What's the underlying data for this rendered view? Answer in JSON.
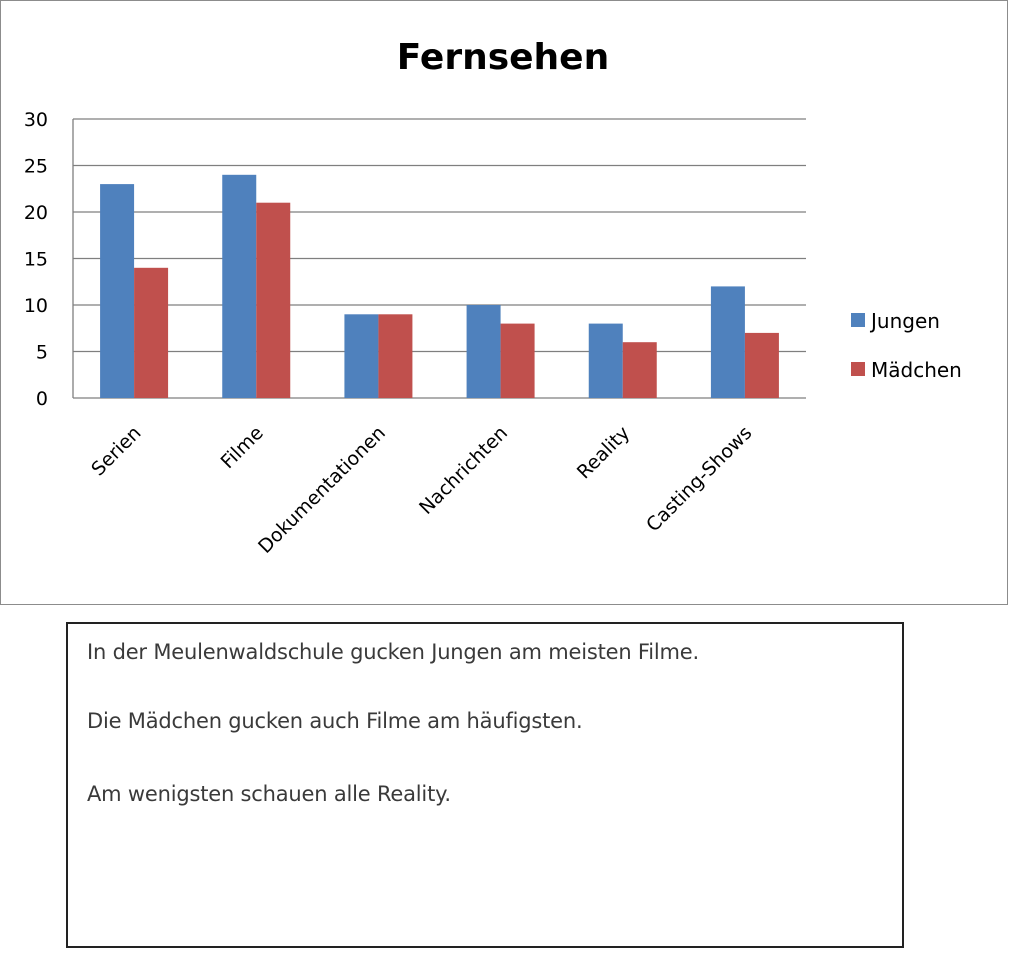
{
  "chart_data": {
    "type": "bar",
    "title": "Fernsehen",
    "xlabel": "",
    "ylabel": "",
    "categories": [
      "Serien",
      "Filme",
      "Dokumentationen",
      "Nachrichten",
      "Reality",
      "Casting-Shows"
    ],
    "series": [
      {
        "name": "Jungen",
        "values": [
          23,
          24,
          9,
          10,
          8,
          12
        ],
        "color": "#4f81bd"
      },
      {
        "name": "Mädchen",
        "values": [
          14,
          21,
          9,
          8,
          6,
          7
        ],
        "color": "#c0504d"
      }
    ],
    "ylim": [
      0,
      30
    ],
    "yticks": [
      0,
      5,
      10,
      15,
      20,
      25,
      30
    ],
    "grid": true,
    "legend_position": "right"
  },
  "text_box": {
    "lines": [
      "In der Meulenwaldschule  gucken Jungen am meisten Filme.",
      "Die Mädchen gucken auch Filme am häufigsten.",
      "Am wenigsten  schauen alle Reality."
    ]
  }
}
